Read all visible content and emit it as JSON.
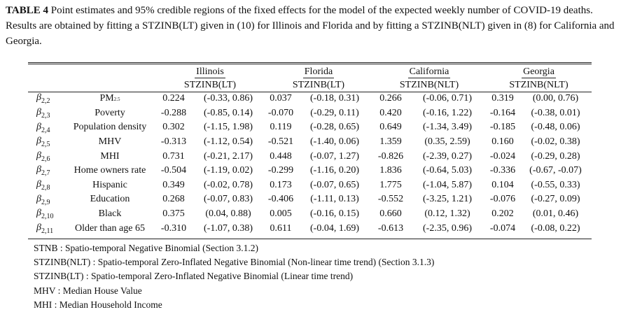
{
  "caption": {
    "label": "TABLE 4",
    "text": " Point estimates and 95% credible regions of the fixed effects for the model of the expected weekly number of COVID-19 deaths. Results are obtained by fitting a STZINB(LT) given in (10) for Illinois and Florida and by fitting a STZINB(NLT) given in (8) for California and Georgia."
  },
  "table": {
    "states": [
      "Illinois",
      "Florida",
      "California",
      "Georgia"
    ],
    "models": [
      "STZINB(LT)",
      "STZINB(LT)",
      "STZINB(NLT)",
      "STZINB(NLT)"
    ],
    "rows": [
      {
        "beta_sub": "2,2",
        "variable": "PM",
        "variable_sub": "2.5",
        "values": [
          [
            "0.224",
            "(-0.33, 0.86)"
          ],
          [
            "0.037",
            "(-0.18, 0.31)"
          ],
          [
            "0.266",
            "(-0.06, 0.71)"
          ],
          [
            "0.319",
            "(0.00, 0.76)"
          ]
        ]
      },
      {
        "beta_sub": "2,3",
        "variable": "Poverty",
        "values": [
          [
            "-0.288",
            "(-0.85, 0.14)"
          ],
          [
            "-0.070",
            "(-0.29, 0.11)"
          ],
          [
            "0.420",
            "(-0.16, 1.22)"
          ],
          [
            "-0.164",
            "(-0.38, 0.01)"
          ]
        ]
      },
      {
        "beta_sub": "2,4",
        "variable": "Population density",
        "values": [
          [
            "0.302",
            "(-1.15, 1.98)"
          ],
          [
            "0.119",
            "(-0.28, 0.65)"
          ],
          [
            "0.649",
            "(-1.34, 3.49)"
          ],
          [
            "-0.185",
            "(-0.48, 0.06)"
          ]
        ]
      },
      {
        "beta_sub": "2,5",
        "variable": "MHV",
        "values": [
          [
            "-0.313",
            "(-1.12, 0.54)"
          ],
          [
            "-0.521",
            "(-1.40, 0.06)"
          ],
          [
            "1.359",
            "(0.35, 2.59)"
          ],
          [
            "0.160",
            "(-0.02, 0.38)"
          ]
        ]
      },
      {
        "beta_sub": "2,6",
        "variable": "MHI",
        "values": [
          [
            "0.731",
            "(-0.21, 2.17)"
          ],
          [
            "0.448",
            "(-0.07, 1.27)"
          ],
          [
            "-0.826",
            "(-2.39, 0.27)"
          ],
          [
            "-0.024",
            "(-0.29, 0.28)"
          ]
        ]
      },
      {
        "beta_sub": "2,7",
        "variable": "Home owners rate",
        "values": [
          [
            "-0.504",
            "(-1.19, 0.02)"
          ],
          [
            "-0.299",
            "(-1.16, 0.20)"
          ],
          [
            "1.836",
            "(-0.64, 5.03)"
          ],
          [
            "-0.336",
            "(-0.67, -0.07)"
          ]
        ]
      },
      {
        "beta_sub": "2,8",
        "variable": "Hispanic",
        "values": [
          [
            "0.349",
            "(-0.02, 0.78)"
          ],
          [
            "0.173",
            "(-0.07, 0.65)"
          ],
          [
            "1.775",
            "(-1.04, 5.87)"
          ],
          [
            "0.104",
            "(-0.55, 0.33)"
          ]
        ]
      },
      {
        "beta_sub": "2,9",
        "variable": "Education",
        "values": [
          [
            "0.268",
            "(-0.07, 0.83)"
          ],
          [
            "-0.406",
            "(-1.11, 0.13)"
          ],
          [
            "-0.552",
            "(-3.25, 1.21)"
          ],
          [
            "-0.076",
            "(-0.27, 0.09)"
          ]
        ]
      },
      {
        "beta_sub": "2,10",
        "variable": "Black",
        "values": [
          [
            "0.375",
            "(0.04, 0.88)"
          ],
          [
            "0.005",
            "(-0.16, 0.15)"
          ],
          [
            "0.660",
            "(0.12, 1.32)"
          ],
          [
            "0.202",
            "(0.01, 0.46)"
          ]
        ]
      },
      {
        "beta_sub": "2,11",
        "variable": "Older than age 65",
        "values": [
          [
            "-0.310",
            "(-1.07, 0.38)"
          ],
          [
            "0.611",
            "(-0.04, 1.69)"
          ],
          [
            "-0.613",
            "(-2.35, 0.96)"
          ],
          [
            "-0.074",
            "(-0.08, 0.22)"
          ]
        ]
      }
    ]
  },
  "footnotes": [
    "STNB : Spatio-temporal Negative Binomial (Section 3.1.2)",
    "STZINB(NLT) : Spatio-temporal Zero-Inflated Negative Binomial (Non-linear time trend) (Section 3.1.3)",
    "STZINB(LT) : Spatio-temporal Zero-Inflated Negative Binomial (Linear time trend)",
    "MHV : Median House Value",
    "MHI : Median Household Income"
  ],
  "symbols": {
    "beta": "β"
  }
}
